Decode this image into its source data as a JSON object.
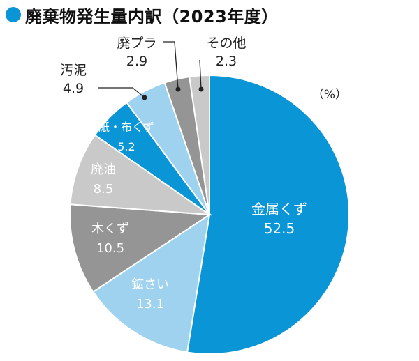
{
  "title": "廃棄物発生量内訳（2023年度）",
  "unit": "（%）",
  "colors": {
    "title_dot": "#0a96d6"
  },
  "chart_data": {
    "type": "pie",
    "title": "廃棄物発生量内訳（2023年度）",
    "unit": "%",
    "start": "12 o'clock",
    "direction": "clockwise",
    "slices": [
      {
        "name": "金属くず",
        "value": 52.5,
        "color": "#0a96d6",
        "label_color": "#ffffff"
      },
      {
        "name": "鉱さい",
        "value": 13.1,
        "color": "#9ed2ef",
        "label_color": "#ffffff"
      },
      {
        "name": "木くず",
        "value": 10.5,
        "color": "#959595",
        "label_color": "#ffffff"
      },
      {
        "name": "廃油",
        "value": 8.5,
        "color": "#c9c9c9",
        "label_color": "#ffffff"
      },
      {
        "name": "紙・布くず",
        "value": 5.2,
        "color": "#0a96d6",
        "label_color": "#ffffff"
      },
      {
        "name": "汚泥",
        "value": 4.9,
        "color": "#9ed2ef",
        "label_color": "#222222"
      },
      {
        "name": "廃プラ",
        "value": 2.9,
        "color": "#959595",
        "label_color": "#222222"
      },
      {
        "name": "その他",
        "value": 2.3,
        "color": "#c9c9c9",
        "label_color": "#222222"
      }
    ]
  }
}
